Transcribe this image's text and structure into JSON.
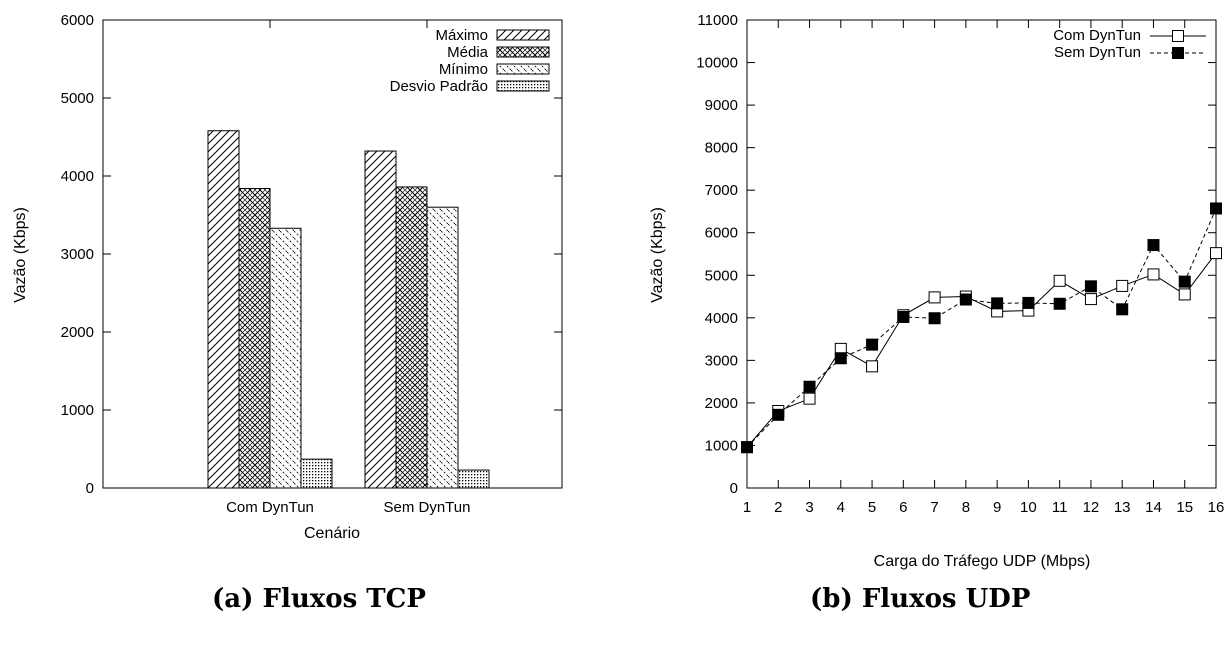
{
  "chart_data": [
    {
      "type": "bar",
      "title": "",
      "xlabel": "Cenário",
      "ylabel": "Vazão (Kbps)",
      "ylim": [
        0,
        6000
      ],
      "yticks": [
        0,
        1000,
        2000,
        3000,
        4000,
        5000,
        6000
      ],
      "categories": [
        "Com DynTun",
        "Sem DynTun"
      ],
      "series": [
        {
          "name": "Máximo",
          "values": [
            4580,
            4320
          ],
          "pattern": "diagonal"
        },
        {
          "name": "Média",
          "values": [
            3840,
            3860
          ],
          "pattern": "crosshatch"
        },
        {
          "name": "Mínimo",
          "values": [
            3330,
            3600
          ],
          "pattern": "dashed-diagonal"
        },
        {
          "name": "Desvio Padrão",
          "values": [
            370,
            230
          ],
          "pattern": "dots"
        }
      ],
      "legend_position": "top-right",
      "caption": "(a) Fluxos TCP"
    },
    {
      "type": "line",
      "title": "",
      "xlabel": "Carga do Tráfego UDP (Mbps)",
      "ylabel": "Vazão (Kbps)",
      "xlim": [
        1,
        16
      ],
      "ylim": [
        0,
        11000
      ],
      "xticks": [
        1,
        2,
        3,
        4,
        5,
        6,
        7,
        8,
        9,
        10,
        11,
        12,
        13,
        14,
        15,
        16
      ],
      "yticks": [
        0,
        1000,
        2000,
        3000,
        4000,
        5000,
        6000,
        7000,
        8000,
        9000,
        10000,
        11000
      ],
      "x": [
        1,
        2,
        3,
        4,
        5,
        6,
        7,
        8,
        9,
        10,
        11,
        12,
        13,
        14,
        15,
        16
      ],
      "series": [
        {
          "name": "Com DynTun",
          "values": [
            960,
            1810,
            2100,
            3270,
            2860,
            4060,
            4480,
            4500,
            4150,
            4170,
            4870,
            4440,
            4750,
            5020,
            4550,
            5520
          ],
          "marker": "open-square",
          "line": "solid"
        },
        {
          "name": "Sem DynTun",
          "values": [
            960,
            1720,
            2380,
            3050,
            3370,
            4020,
            3990,
            4430,
            4340,
            4350,
            4330,
            4740,
            4200,
            5710,
            4850,
            6570
          ],
          "marker": "filled-square",
          "line": "dashed"
        }
      ],
      "legend_position": "top-right",
      "caption": "(b) Fluxos UDP"
    }
  ]
}
